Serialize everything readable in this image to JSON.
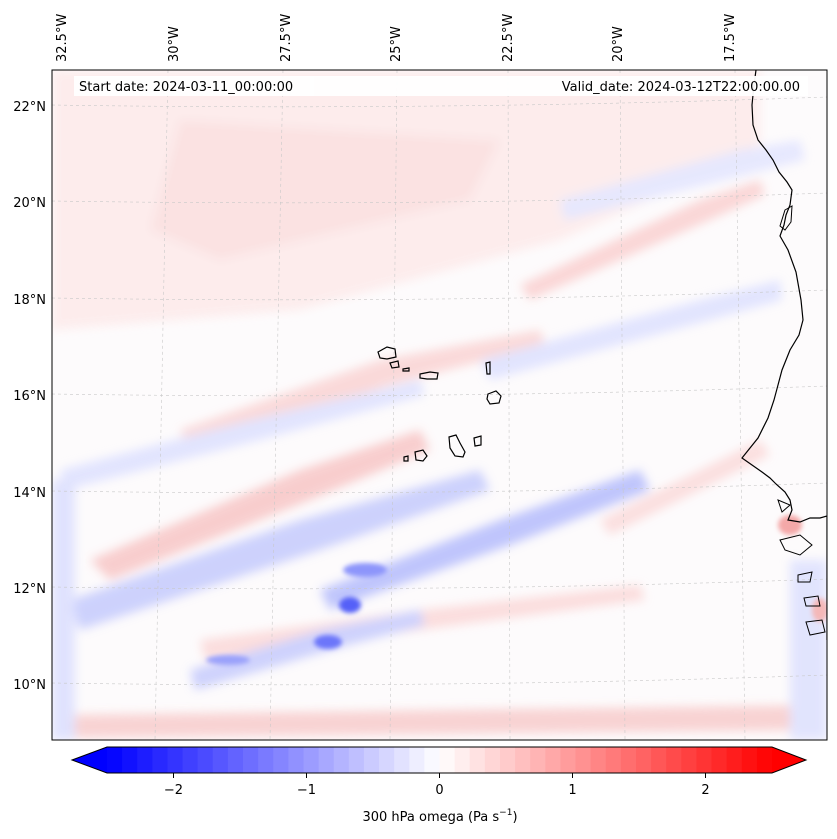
{
  "map": {
    "start_label": "Start date: 2024-03-11_00:00:00",
    "valid_label": "Valid_date: 2024-03-12T22:00:00.00",
    "lon_labels": [
      "32.5°W",
      "30°W",
      "27.5°W",
      "25°W",
      "22.5°W",
      "20°W",
      "17.5°W"
    ],
    "lat_labels": [
      "22°N",
      "20°N",
      "18°N",
      "16°N",
      "14°N",
      "12°N",
      "10°N"
    ],
    "features": {
      "coastline": "African coastline",
      "islands": "Cape Verde islands"
    }
  },
  "colorbar": {
    "label": "300 hPa omega (Pa s",
    "label_sup": "−1",
    "label_end": ")",
    "ticks": [
      "−2",
      "−1",
      "0",
      "1",
      "2"
    ],
    "min": -2.75,
    "max": 2.75,
    "tick_values": [
      -2,
      -1,
      0,
      1,
      2
    ],
    "levels": 44,
    "cmap": "bwr"
  },
  "colors": {
    "neg": "#0000ff",
    "pos": "#ff0000",
    "mid": "#ffffff",
    "grid": "#cccccc"
  }
}
